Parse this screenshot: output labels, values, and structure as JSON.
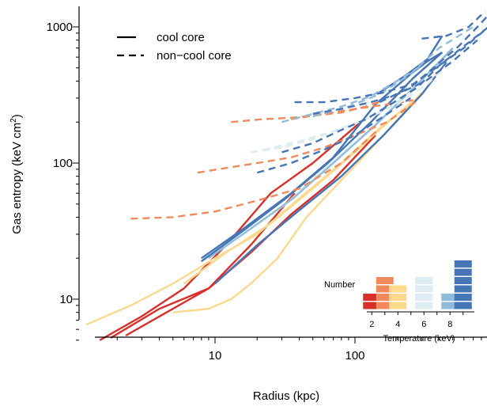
{
  "chart_data": {
    "type": "line",
    "x_scale": "log",
    "y_scale": "log",
    "xlabel": "Radius (kpc)",
    "ylabel": "Gas entropy  (keV cm²)",
    "xlim": [
      1.2,
      1000
    ],
    "ylim": [
      4.8,
      1500
    ],
    "x_ticks": [
      10,
      100
    ],
    "y_ticks": [
      10,
      100,
      1000
    ],
    "grid": false,
    "legend": {
      "position": "top-left",
      "entries": [
        {
          "label": "cool core",
          "line_style": "solid"
        },
        {
          "label": "non−cool core",
          "line_style": "dashed"
        }
      ]
    },
    "temperature_colors": {
      "2": "#d7302a",
      "3": "#f08a5c",
      "4": "#fbd98d",
      "5": "#dcecf0",
      "7": "#90bcdb",
      "8": "#4575b4"
    },
    "series": [
      {
        "style": "solid",
        "temperature_keV": 2,
        "x": [
          1.8,
          4,
          9,
          18,
          35,
          70,
          140
        ],
        "y": [
          5.2,
          8.5,
          12,
          22,
          42,
          75,
          160
        ]
      },
      {
        "style": "solid",
        "temperature_keV": 2,
        "x": [
          1.5,
          3,
          6,
          12,
          25,
          50,
          110
        ],
        "y": [
          5.0,
          7.5,
          12,
          25,
          60,
          100,
          200
        ]
      },
      {
        "style": "solid",
        "temperature_keV": 2,
        "x": [
          2.3,
          4.5,
          9,
          18,
          37
        ],
        "y": [
          5.4,
          8,
          12,
          25,
          60
        ]
      },
      {
        "style": "solid",
        "temperature_keV": 4,
        "x": [
          1.2,
          2.5,
          5,
          10,
          20,
          40,
          80,
          150,
          300
        ],
        "y": [
          6.5,
          9,
          13,
          20,
          30,
          55,
          100,
          180,
          320
        ]
      },
      {
        "style": "solid",
        "temperature_keV": 4,
        "x": [
          5,
          9,
          13,
          18,
          28,
          45,
          80,
          160,
          300
        ],
        "y": [
          8,
          8.5,
          10,
          13,
          20,
          40,
          75,
          160,
          330
        ]
      },
      {
        "style": "solid",
        "temperature_keV": 4,
        "x": [
          6,
          12,
          25,
          50,
          100,
          200
        ],
        "y": [
          13,
          22,
          36,
          65,
          120,
          230
        ]
      },
      {
        "style": "solid",
        "temperature_keV": 5,
        "x": [
          8,
          16,
          32,
          64,
          130,
          260,
          500
        ],
        "y": [
          20,
          30,
          50,
          95,
          180,
          350,
          680
        ]
      },
      {
        "style": "solid",
        "temperature_keV": 7,
        "x": [
          9,
          18,
          36,
          70,
          140,
          280,
          500
        ],
        "y": [
          20,
          33,
          55,
          100,
          190,
          380,
          700
        ]
      },
      {
        "style": "solid",
        "temperature_keV": 8,
        "x": [
          8,
          16,
          32,
          64,
          130,
          260,
          420
        ],
        "y": [
          19,
          32,
          55,
          100,
          200,
          420,
          650
        ]
      },
      {
        "style": "solid",
        "temperature_keV": 8,
        "x": [
          10,
          20,
          40,
          80,
          160,
          300,
          450
        ],
        "y": [
          13,
          25,
          45,
          80,
          160,
          320,
          550
        ]
      },
      {
        "style": "solid",
        "temperature_keV": 8,
        "x": [
          8,
          16,
          35,
          70,
          140,
          250,
          330,
          420
        ],
        "y": [
          20,
          33,
          60,
          110,
          270,
          450,
          560,
          650
        ]
      },
      {
        "style": "solid",
        "temperature_keV": 8,
        "x": [
          150,
          230,
          330,
          420
        ],
        "y": [
          330,
          440,
          580,
          860
        ]
      },
      {
        "style": "dashed",
        "temperature_keV": 3,
        "x": [
          2.5,
          5,
          10,
          20,
          40,
          80,
          150
        ],
        "y": [
          39,
          40,
          44,
          53,
          65,
          100,
          180
        ]
      },
      {
        "style": "dashed",
        "temperature_keV": 3,
        "x": [
          7.5,
          12,
          20,
          35,
          60,
          100,
          170,
          270
        ],
        "y": [
          85,
          92,
          100,
          110,
          130,
          160,
          200,
          280
        ]
      },
      {
        "style": "dashed",
        "temperature_keV": 3,
        "x": [
          13,
          22,
          35,
          55,
          80,
          120,
          160
        ],
        "y": [
          200,
          210,
          215,
          225,
          235,
          260,
          290
        ]
      },
      {
        "style": "dashed",
        "temperature_keV": 3,
        "x": [
          35,
          60,
          100,
          150,
          200,
          260
        ],
        "y": [
          210,
          230,
          250,
          265,
          275,
          290
        ]
      },
      {
        "style": "dashed",
        "temperature_keV": 5,
        "x": [
          18,
          30,
          50,
          80,
          120,
          180,
          270
        ],
        "y": [
          120,
          130,
          150,
          180,
          210,
          260,
          350
        ]
      },
      {
        "style": "dashed",
        "temperature_keV": 5,
        "x": [
          22,
          40,
          70,
          120,
          200,
          330,
          500
        ],
        "y": [
          125,
          145,
          170,
          210,
          270,
          380,
          580
        ]
      },
      {
        "style": "dashed",
        "temperature_keV": 7,
        "x": [
          30,
          50,
          80,
          130,
          200,
          300
        ],
        "y": [
          200,
          230,
          260,
          310,
          400,
          520
        ]
      },
      {
        "style": "dashed",
        "temperature_keV": 7,
        "x": [
          50,
          90,
          150,
          250,
          400,
          700
        ],
        "y": [
          220,
          260,
          320,
          450,
          700,
          1000
        ]
      },
      {
        "style": "dashed",
        "temperature_keV": 8,
        "x": [
          20,
          35,
          60,
          100,
          160,
          250
        ],
        "y": [
          85,
          100,
          125,
          160,
          220,
          300
        ]
      },
      {
        "style": "dashed",
        "temperature_keV": 8,
        "x": [
          30,
          50,
          80,
          120,
          180,
          280,
          400,
          600,
          900
        ],
        "y": [
          120,
          140,
          175,
          210,
          270,
          360,
          520,
          720,
          1000
        ]
      },
      {
        "style": "dashed",
        "temperature_keV": 8,
        "x": [
          37,
          60,
          100,
          160,
          260,
          400,
          600,
          900
        ],
        "y": [
          280,
          280,
          300,
          330,
          380,
          520,
          700,
          1000
        ]
      },
      {
        "style": "dashed",
        "temperature_keV": 8,
        "x": [
          50,
          80,
          130,
          200,
          320,
          500,
          750
        ],
        "y": [
          230,
          250,
          280,
          320,
          400,
          560,
          800
        ]
      },
      {
        "style": "dashed",
        "temperature_keV": 8,
        "x": [
          150,
          250,
          380,
          550,
          750,
          950
        ],
        "y": [
          280,
          360,
          520,
          720,
          1000,
          1300
        ]
      },
      {
        "style": "dashed",
        "temperature_keV": 8,
        "x": [
          300,
          450,
          650,
          850
        ],
        "y": [
          820,
          860,
          1000,
          1300
        ]
      }
    ],
    "inset_histogram": {
      "label": "Number",
      "xlabel": "Temperature (keV)",
      "x_ticks": [
        2,
        4,
        6,
        8
      ],
      "bins": [
        {
          "temperature_keV": 2,
          "count": 2,
          "color": "#d7302a"
        },
        {
          "temperature_keV": 3,
          "count": 4,
          "color": "#f08a5c"
        },
        {
          "temperature_keV": 4,
          "count": 3,
          "color": "#fbd98d"
        },
        {
          "temperature_keV": 6,
          "count": 4,
          "color": "#dcecf0"
        },
        {
          "temperature_keV": 8,
          "count": 2,
          "color": "#90bcdb"
        },
        {
          "temperature_keV": 9,
          "count": 6,
          "color": "#4575b4"
        }
      ]
    }
  }
}
